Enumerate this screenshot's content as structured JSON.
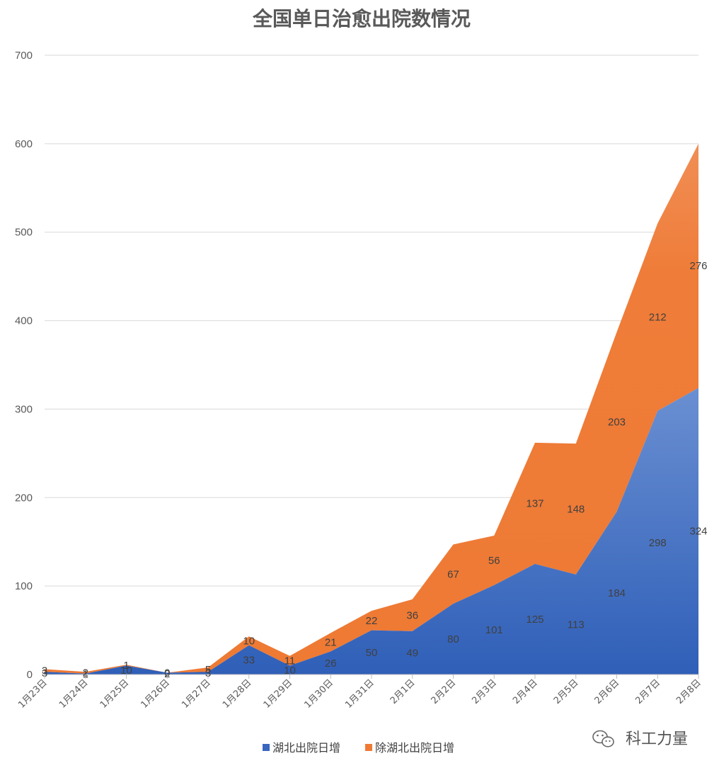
{
  "chart_data": {
    "type": "area",
    "stacked": true,
    "title": "全国单日治愈出院数情况",
    "xlabel": "",
    "ylabel": "",
    "ylim": [
      0,
      700
    ],
    "yticks": [
      0,
      100,
      200,
      300,
      400,
      500,
      600,
      700
    ],
    "grid": true,
    "legend_position": "bottom",
    "categories": [
      "1月23日",
      "1月24日",
      "1月25日",
      "1月26日",
      "1月27日",
      "1月28日",
      "1月29日",
      "1月30日",
      "1月31日",
      "2月1日",
      "2月2日",
      "2月3日",
      "2月4日",
      "2月5日",
      "2月6日",
      "2月7日",
      "2月8日"
    ],
    "series": [
      {
        "name": "湖北出院日增",
        "color": "#3a66c0",
        "values": [
          3,
          1,
          10,
          2,
          3,
          33,
          10,
          26,
          50,
          49,
          80,
          101,
          125,
          113,
          184,
          298,
          324
        ]
      },
      {
        "name": "除湖北出院日增",
        "color": "#ee7a34",
        "values": [
          3,
          2,
          1,
          0,
          5,
          10,
          11,
          21,
          22,
          36,
          67,
          56,
          137,
          148,
          203,
          212,
          276
        ]
      }
    ]
  },
  "watermark": {
    "text": "科工力量",
    "icon": "wechat-icon"
  }
}
